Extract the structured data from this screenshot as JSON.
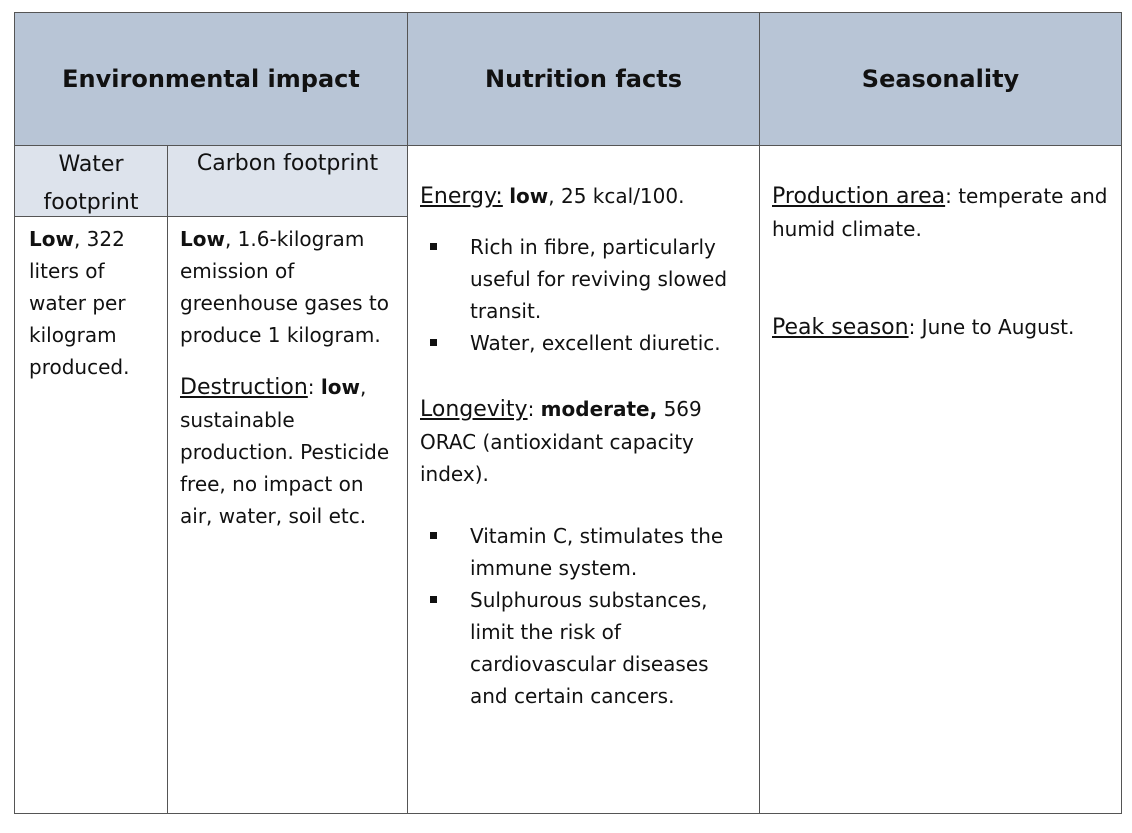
{
  "headers": {
    "environmental": "Environmental impact",
    "nutrition": "Nutrition facts",
    "seasonality": "Seasonality"
  },
  "subheaders": {
    "water": "Water footprint",
    "carbon": "Carbon footprint"
  },
  "water": {
    "level": "Low",
    "detail": ", 322 liters of water per kilogram produced."
  },
  "carbon": {
    "level": "Low",
    "detail": ", 1.6-kilogram emission of greenhouse gases to produce 1 kilogram."
  },
  "destruction": {
    "label": "Destruction",
    "sep": ": ",
    "level": "low",
    "detail": ", sustainable production. Pesticide free, no impact on air, water, soil etc."
  },
  "energy": {
    "label": "Energy:",
    "level": "low",
    "detail": ", 25 kcal/100.",
    "bullets": [
      "Rich in fibre, particularly useful for reviving slowed transit.",
      "Water, excellent diuretic."
    ]
  },
  "longevity": {
    "label": "Longevity",
    "sep": ": ",
    "level": "moderate,",
    "detail": " 569 ORAC (antioxidant capacity index).",
    "bullets": [
      "Vitamin C, stimulates the immune system.",
      "Sulphurous substances, limit the risk of cardiovascular diseases and certain cancers."
    ]
  },
  "production": {
    "label": "Production area",
    "detail": ":   temperate and humid climate."
  },
  "peak": {
    "label": "Peak season",
    "detail": ": June to August."
  }
}
